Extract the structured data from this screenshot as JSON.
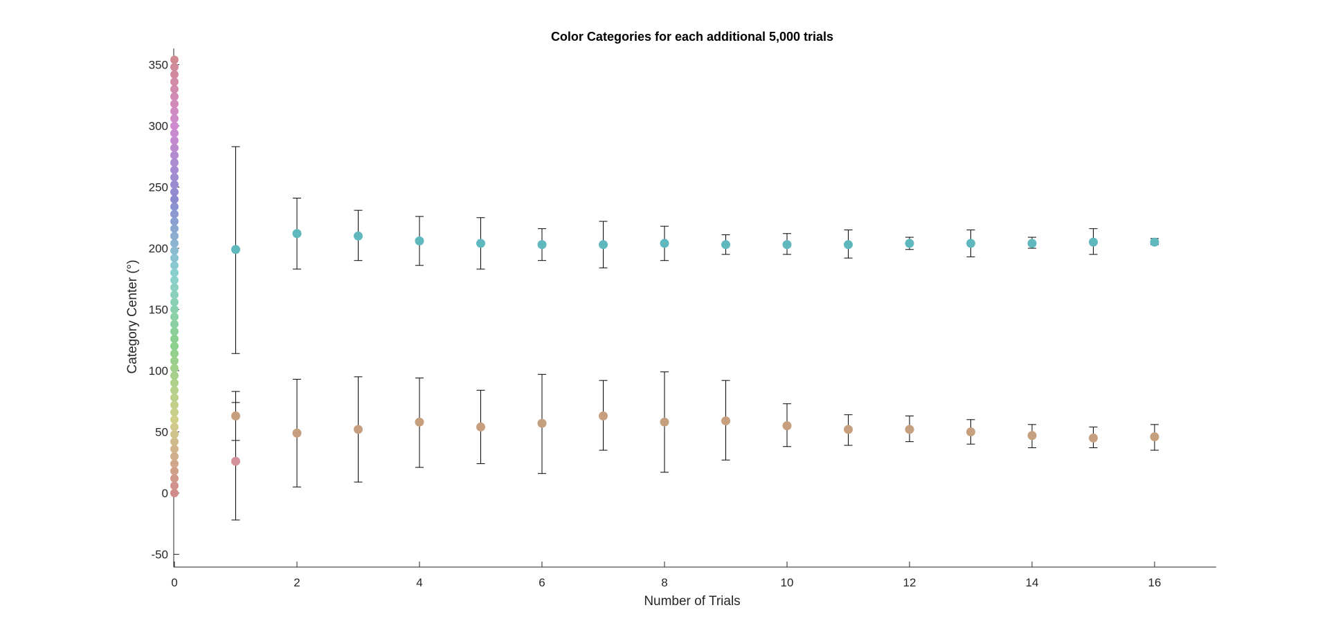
{
  "chart_data": {
    "type": "scatter",
    "title": "Color Categories for each additional 5,000 trials",
    "xlabel": "Number of Trials",
    "ylabel": "Category Center (°)",
    "xlim": [
      0,
      17
    ],
    "ylim": [
      -60,
      360
    ],
    "x_ticks": [
      "0",
      "2",
      "4",
      "6",
      "8",
      "10",
      "12",
      "14",
      "16"
    ],
    "y_ticks": [
      "-50",
      "0",
      "50",
      "100",
      "150",
      "200",
      "250",
      "300",
      "350"
    ],
    "grid": false,
    "legend": "none",
    "hue_reference": {
      "x": 0,
      "y_from": 0,
      "y_to": 354,
      "y_step": 6,
      "note_colors": "points colored by hue angle"
    },
    "series": [
      {
        "color": "#5fb8be",
        "points": [
          {
            "x": 1,
            "y": 199,
            "lo": 114,
            "hi": 283
          },
          {
            "x": 2,
            "y": 212,
            "lo": 183,
            "hi": 241
          },
          {
            "x": 3,
            "y": 210,
            "lo": 190,
            "hi": 231
          },
          {
            "x": 4,
            "y": 206,
            "lo": 186,
            "hi": 226
          },
          {
            "x": 5,
            "y": 204,
            "lo": 183,
            "hi": 225
          },
          {
            "x": 6,
            "y": 203,
            "lo": 190,
            "hi": 216
          },
          {
            "x": 7,
            "y": 203,
            "lo": 184,
            "hi": 222
          },
          {
            "x": 8,
            "y": 204,
            "lo": 190,
            "hi": 218
          },
          {
            "x": 9,
            "y": 203,
            "lo": 195,
            "hi": 211
          },
          {
            "x": 10,
            "y": 203,
            "lo": 195,
            "hi": 212
          },
          {
            "x": 11,
            "y": 203,
            "lo": 192,
            "hi": 215
          },
          {
            "x": 12,
            "y": 204,
            "lo": 199,
            "hi": 209
          },
          {
            "x": 13,
            "y": 204,
            "lo": 193,
            "hi": 215
          },
          {
            "x": 14,
            "y": 204,
            "lo": 200,
            "hi": 209
          },
          {
            "x": 15,
            "y": 205,
            "lo": 195,
            "hi": 216
          },
          {
            "x": 16,
            "y": 205,
            "lo": 203,
            "hi": 208
          }
        ]
      },
      {
        "color": "#c6a07e",
        "points": [
          {
            "x": 1,
            "y": 63,
            "lo": 43,
            "hi": 83
          },
          {
            "x": 2,
            "y": 49,
            "lo": 5,
            "hi": 93
          },
          {
            "x": 3,
            "y": 52,
            "lo": 9,
            "hi": 95
          },
          {
            "x": 4,
            "y": 58,
            "lo": 21,
            "hi": 94
          },
          {
            "x": 5,
            "y": 54,
            "lo": 24,
            "hi": 84
          },
          {
            "x": 6,
            "y": 57,
            "lo": 16,
            "hi": 97
          },
          {
            "x": 7,
            "y": 63,
            "lo": 35,
            "hi": 92
          },
          {
            "x": 8,
            "y": 58,
            "lo": 17,
            "hi": 99
          },
          {
            "x": 9,
            "y": 59,
            "lo": 27,
            "hi": 92
          },
          {
            "x": 10,
            "y": 55,
            "lo": 38,
            "hi": 73
          },
          {
            "x": 11,
            "y": 52,
            "lo": 39,
            "hi": 64
          },
          {
            "x": 12,
            "y": 52,
            "lo": 42,
            "hi": 63
          },
          {
            "x": 13,
            "y": 50,
            "lo": 40,
            "hi": 60
          },
          {
            "x": 14,
            "y": 47,
            "lo": 37,
            "hi": 56
          },
          {
            "x": 15,
            "y": 45,
            "lo": 37,
            "hi": 54
          },
          {
            "x": 16,
            "y": 46,
            "lo": 35,
            "hi": 56
          }
        ]
      },
      {
        "color": "#d4939a",
        "points": [
          {
            "x": 1,
            "y": 26,
            "lo": -22,
            "hi": 74
          }
        ]
      }
    ]
  }
}
